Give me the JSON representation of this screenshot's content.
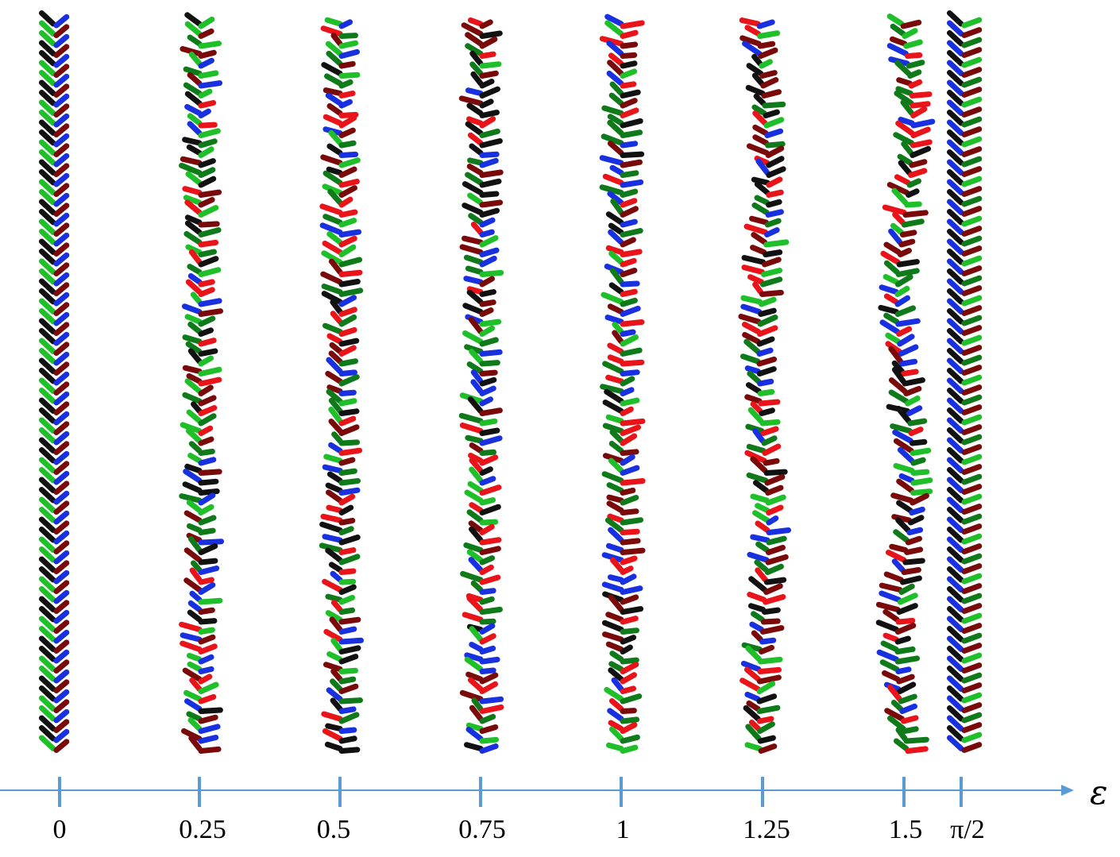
{
  "figure": {
    "axis": {
      "label": "ε",
      "color": "#5b9bd5",
      "ticks": [
        {
          "label": "0",
          "value": 0
        },
        {
          "label": "0.25",
          "value": 0.25
        },
        {
          "label": "0.5",
          "value": 0.5
        },
        {
          "label": "0.75",
          "value": 0.75
        },
        {
          "label": "1",
          "value": 1
        },
        {
          "label": "1.25",
          "value": 1.25
        },
        {
          "label": "1.5",
          "value": 1.5
        },
        {
          "label": "π/2",
          "value": 1.5708
        }
      ]
    },
    "stick_colors": {
      "red": "#e8141a",
      "dark_red": "#7a0a0a",
      "green": "#1fbf2a",
      "dark_green": "#0f7a1a",
      "blue": "#1830e0",
      "black": "#111111"
    },
    "columns": [
      {
        "epsilon_label": "0",
        "pattern": "regular"
      },
      {
        "epsilon_label": "0.25",
        "pattern": "mixed"
      },
      {
        "epsilon_label": "0.5",
        "pattern": "mixed"
      },
      {
        "epsilon_label": "0.75",
        "pattern": "mixed"
      },
      {
        "epsilon_label": "1",
        "pattern": "mixed"
      },
      {
        "epsilon_label": "1.25",
        "pattern": "wavy"
      },
      {
        "epsilon_label": "1.5",
        "pattern": "wavy"
      },
      {
        "epsilon_label": "π/2",
        "pattern": "regular"
      }
    ]
  }
}
